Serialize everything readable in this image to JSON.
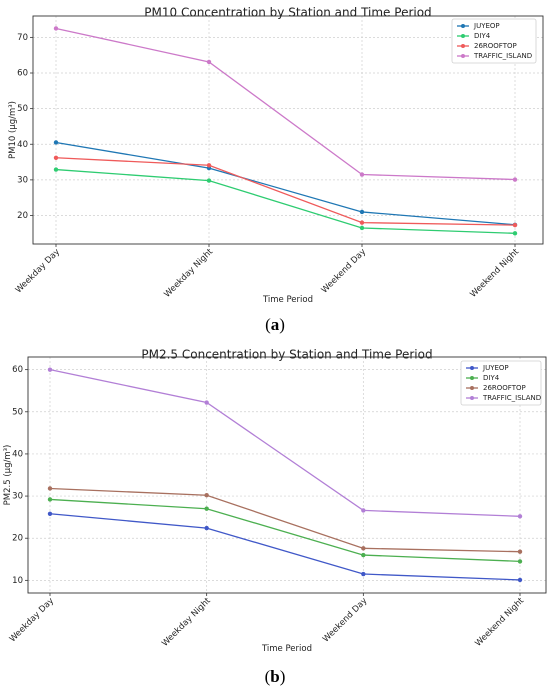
{
  "captions": {
    "a": "a",
    "b": "b"
  },
  "chart_data": [
    {
      "type": "line",
      "title": "PM10 Concentration by Station and Time Period",
      "xlabel": "Time Period",
      "ylabel": "PM10 (μg/m³)",
      "categories": [
        "Weekday Day",
        "Weekday Night",
        "Weekend Day",
        "Weekend Night"
      ],
      "ylim": [
        12,
        76
      ],
      "yticks": [
        20,
        30,
        40,
        50,
        60,
        70
      ],
      "grid": true,
      "legend": "top-right",
      "series": [
        {
          "name": "JUYEOP",
          "color": "#1f77b4",
          "values": [
            40.5,
            33.3,
            21.0,
            17.4
          ]
        },
        {
          "name": "DIY4",
          "color": "#2ecc71",
          "values": [
            32.9,
            29.8,
            16.5,
            15.0
          ]
        },
        {
          "name": "26ROOFTOP",
          "color": "#ef5a5a",
          "values": [
            36.2,
            34.1,
            18.0,
            17.3
          ]
        },
        {
          "name": "TRAFFIC_ISLAND",
          "color": "#cc79c9",
          "values": [
            72.5,
            63.1,
            31.5,
            30.1
          ]
        }
      ]
    },
    {
      "type": "line",
      "title": "PM2.5 Concentration by Station and Time Period",
      "xlabel": "Time Period",
      "ylabel": "PM2.5 (μg/m³)",
      "categories": [
        "Weekday Day",
        "Weekday Night",
        "Weekend Day",
        "Weekend Night"
      ],
      "ylim": [
        7,
        63
      ],
      "yticks": [
        10,
        20,
        30,
        40,
        50,
        60
      ],
      "grid": true,
      "legend": "top-right",
      "series": [
        {
          "name": "JUYEOP",
          "color": "#4058c8",
          "values": [
            25.8,
            22.4,
            11.5,
            10.1
          ]
        },
        {
          "name": "DIY4",
          "color": "#4caf50",
          "values": [
            29.2,
            27.0,
            16.0,
            14.5
          ]
        },
        {
          "name": "26ROOFTOP",
          "color": "#a8705f",
          "values": [
            31.8,
            30.2,
            17.6,
            16.8
          ]
        },
        {
          "name": "TRAFFIC_ISLAND",
          "color": "#b27fd6",
          "values": [
            60.0,
            52.2,
            26.6,
            25.2
          ]
        }
      ]
    }
  ]
}
